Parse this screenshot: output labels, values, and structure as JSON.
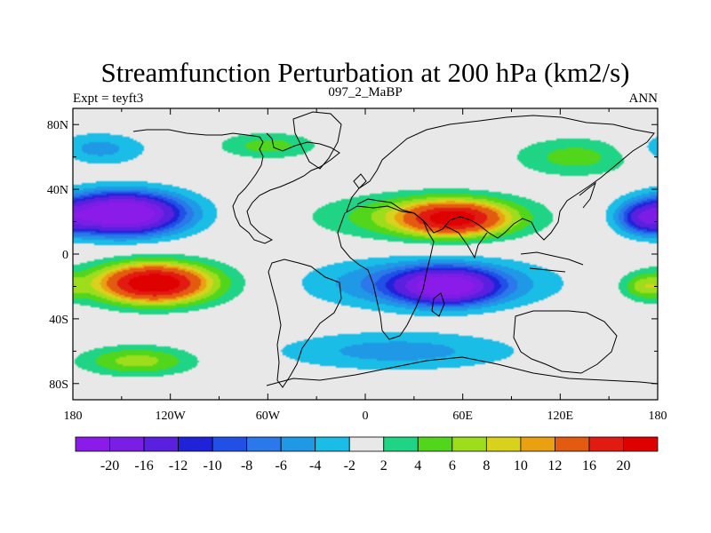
{
  "chart_data": {
    "type": "contour-map",
    "title": "Streamfunction Perturbation at 200 hPa (km2/s)",
    "left_label": "Expt = teyft3",
    "center_label": "097_2_MaBP",
    "right_label": "ANN",
    "xlim": [
      -180,
      180
    ],
    "ylim": [
      -90,
      90
    ],
    "x_ticks": [
      {
        "value": -180,
        "label": "180"
      },
      {
        "value": -120,
        "label": "120W"
      },
      {
        "value": -60,
        "label": "60W"
      },
      {
        "value": 0,
        "label": "0"
      },
      {
        "value": 60,
        "label": "60E"
      },
      {
        "value": 120,
        "label": "120E"
      },
      {
        "value": 180,
        "label": "180"
      }
    ],
    "y_ticks": [
      {
        "value": 80,
        "label": "80N"
      },
      {
        "value": 40,
        "label": "40N"
      },
      {
        "value": 0,
        "label": "0"
      },
      {
        "value": -40,
        "label": "40S"
      },
      {
        "value": -80,
        "label": "80S"
      }
    ],
    "levels": [
      -20,
      -16,
      -12,
      -10,
      -8,
      -6,
      -4,
      -2,
      2,
      4,
      6,
      8,
      10,
      12,
      16,
      20
    ],
    "level_labels": [
      "-20",
      "-16",
      "-12",
      "-10",
      "-8",
      "-6",
      "-4",
      "-2",
      "2",
      "4",
      "6",
      "8",
      "10",
      "12",
      "16",
      "20"
    ],
    "colors": [
      "#8B1BE8",
      "#7A1EE6",
      "#5A20E0",
      "#1F22D8",
      "#2050E6",
      "#2A78EA",
      "#1F99E6",
      "#19BDE6",
      "#E8E8E8",
      "#1FD585",
      "#52D61B",
      "#9DDD1C",
      "#D8D21C",
      "#E9A112",
      "#E35A11",
      "#E11A12",
      "#DF0000"
    ],
    "centers": [
      {
        "lon": -150,
        "lat": 25,
        "amp": -20,
        "rlon": 32,
        "rlat": 11
      },
      {
        "lon": -150,
        "lat": 25,
        "amp": -8,
        "rlon": 45,
        "rlat": 15
      },
      {
        "lon": 50,
        "lat": -20,
        "amp": -19,
        "rlon": 28,
        "rlat": 10
      },
      {
        "lon": 40,
        "lat": -18,
        "amp": -8,
        "rlon": 70,
        "rlat": 15
      },
      {
        "lon": 55,
        "lat": 22,
        "amp": 17,
        "rlon": 30,
        "rlat": 10
      },
      {
        "lon": 40,
        "lat": 23,
        "amp": 7,
        "rlon": 65,
        "rlat": 14
      },
      {
        "lon": -130,
        "lat": -18,
        "amp": 18,
        "rlon": 30,
        "rlat": 11
      },
      {
        "lon": -130,
        "lat": -18,
        "amp": 7,
        "rlon": 50,
        "rlat": 14
      },
      {
        "lon": 172,
        "lat": 22,
        "amp": -10,
        "rlon": 15,
        "rlat": 9
      },
      {
        "lon": 172,
        "lat": -20,
        "amp": 6,
        "rlon": 14,
        "rlat": 8
      },
      {
        "lon": -140,
        "lat": -66,
        "amp": 7,
        "rlon": 35,
        "rlat": 9
      },
      {
        "lon": 20,
        "lat": -60,
        "amp": -5,
        "rlon": 75,
        "rlat": 12
      },
      {
        "lon": -165,
        "lat": 65,
        "amp": -5,
        "rlon": 30,
        "rlat": 10
      },
      {
        "lon": -60,
        "lat": 67,
        "amp": 5,
        "rlon": 30,
        "rlat": 8
      },
      {
        "lon": 130,
        "lat": 60,
        "amp": 5,
        "rlon": 38,
        "rlat": 12
      }
    ]
  }
}
